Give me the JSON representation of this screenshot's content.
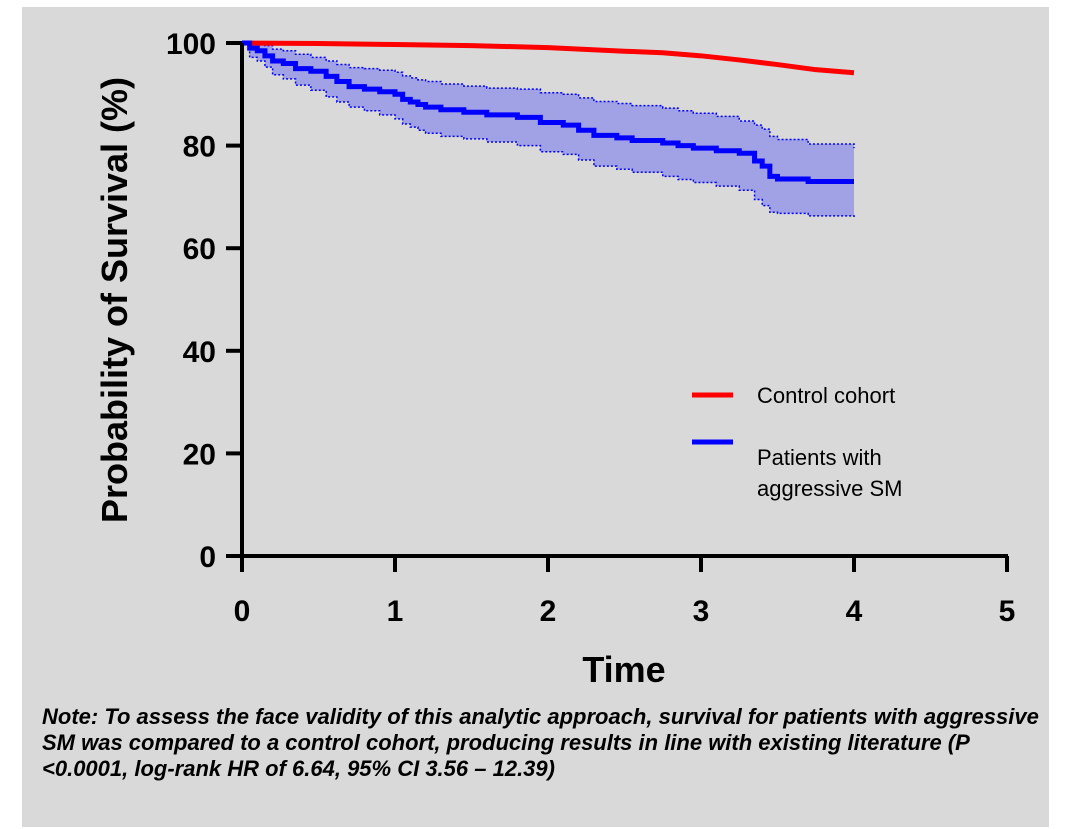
{
  "chart_data": {
    "type": "line",
    "title": "",
    "xlabel": "Time",
    "ylabel": "Probability of Survival (%)",
    "xlim": [
      0,
      5
    ],
    "ylim": [
      0,
      100
    ],
    "x_ticks": [
      0,
      1,
      2,
      3,
      4,
      5
    ],
    "y_ticks": [
      0,
      20,
      40,
      60,
      80,
      100
    ],
    "grid": false,
    "legend_position": "right",
    "series": [
      {
        "name": "Control cohort",
        "color": "#ff0000",
        "step": false,
        "x": [
          0,
          0.5,
          1,
          1.5,
          2,
          2.5,
          2.75,
          3,
          3.25,
          3.5,
          3.75,
          4
        ],
        "y": [
          100,
          99.9,
          99.7,
          99.5,
          99.1,
          98.4,
          98.1,
          97.5,
          96.7,
          95.8,
          94.8,
          94.2
        ]
      },
      {
        "name": "Patients with aggressive SM",
        "color": "#0000ff",
        "ci_color": "#9a9ae6",
        "step": true,
        "x": [
          0,
          0.05,
          0.1,
          0.15,
          0.2,
          0.27,
          0.35,
          0.45,
          0.55,
          0.62,
          0.7,
          0.8,
          0.9,
          1.0,
          1.05,
          1.1,
          1.15,
          1.2,
          1.3,
          1.45,
          1.6,
          1.8,
          1.95,
          2.1,
          2.2,
          2.3,
          2.45,
          2.55,
          2.75,
          2.85,
          2.95,
          3.1,
          3.25,
          3.35,
          3.4,
          3.45,
          3.5,
          3.7,
          4.0
        ],
        "y": [
          100,
          99,
          98.5,
          97.5,
          96.5,
          96,
          95,
          94.5,
          93.5,
          92.5,
          91.5,
          91,
          90.5,
          90,
          89,
          88.5,
          88,
          87.5,
          87,
          86.5,
          86,
          85.5,
          84.5,
          84,
          83,
          82,
          81.5,
          81,
          80.5,
          80,
          79.5,
          79,
          78.5,
          77,
          76,
          74,
          73.5,
          73,
          73
        ],
        "ci_upper": [
          100,
          100,
          99.8,
          99.5,
          98.8,
          98.5,
          97.8,
          97.2,
          96.5,
          95.8,
          95.2,
          95,
          94.7,
          94.3,
          93.6,
          93.2,
          92.8,
          92.5,
          92,
          91.6,
          91.2,
          91,
          90.3,
          90,
          89.3,
          88.6,
          88.2,
          87.8,
          87.3,
          86.8,
          86.3,
          85.7,
          84.8,
          84,
          83.2,
          81.8,
          81.2,
          80.3,
          79.5
        ],
        "ci_lower": [
          100,
          97.2,
          96.5,
          95.3,
          93.8,
          93,
          91.8,
          90.8,
          89.5,
          88.5,
          87.5,
          86.8,
          86,
          85.2,
          84.2,
          83.6,
          83,
          82.4,
          81.8,
          81.3,
          80.7,
          80,
          78.8,
          78.3,
          77.2,
          76,
          75.4,
          74.8,
          74,
          73.4,
          72.8,
          72.1,
          71.3,
          69.5,
          68.3,
          67,
          66.8,
          66.3,
          65.7
        ]
      }
    ],
    "legend": [
      {
        "label": "Control cohort",
        "color": "#ff0000"
      },
      {
        "label_lines": [
          "Patients with",
          "aggressive SM"
        ],
        "color": "#0000ff"
      }
    ]
  },
  "note": "Note: To assess the face validity of this analytic approach, survival for patients with aggressive SM was compared to a control cohort, producing results in line with existing literature (P <0.0001, log-rank HR of 6.64, 95% CI 3.56 – 12.39)"
}
